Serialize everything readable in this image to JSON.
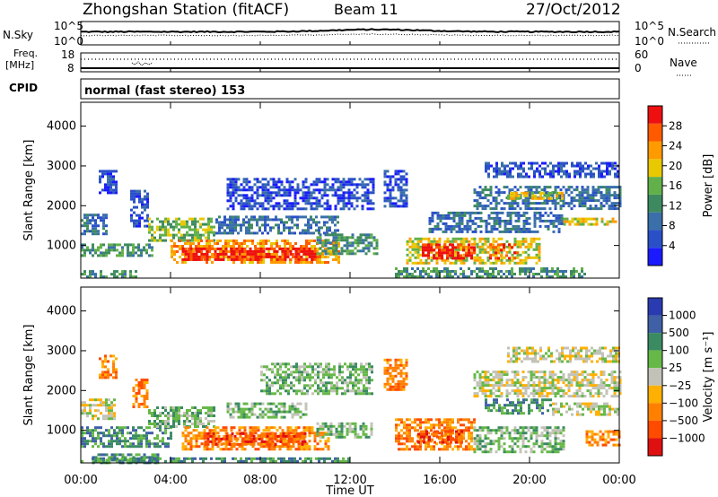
{
  "header": {
    "title": "Zhongshan Station (fitACF)",
    "beam": "Beam 11",
    "date": "27/Oct/2012"
  },
  "side_labels": {
    "nsky": "N.Sky",
    "freq": "Freq.",
    "mhz": "[MHz]",
    "cpid": "CPID",
    "nsearch": "N.Search",
    "nave": "Nave"
  },
  "small_ticks": {
    "noise_top": "10^5",
    "noise_bottom": "10^0",
    "freq_top": "18",
    "freq_bottom": "8",
    "nave_top": "60",
    "nave_bottom": "0"
  },
  "cpid_text": "normal (fast stereo) 153",
  "colors": {
    "power_scale": [
      "#1a1aff",
      "#2a50c8",
      "#3a6faa",
      "#3e8a60",
      "#62b04a",
      "#e8c800",
      "#ff9a00",
      "#ff5a00",
      "#ee1010"
    ],
    "velocity_scale": [
      "#2a3ab0",
      "#3f5fa6",
      "#3a8a62",
      "#66b848",
      "#c2c2b8",
      "#ffb000",
      "#ff8000",
      "#ff4b00",
      "#e01010"
    ]
  },
  "chart_data": [
    {
      "type": "heatmap",
      "quantity": "Power",
      "ylabel": "Slant Range [km]",
      "colorbar_label": "Power [dB]",
      "colorbar_ticks": [
        "4",
        "8",
        "12",
        "16",
        "20",
        "24",
        "28"
      ],
      "colorbar_range": [
        0,
        32
      ],
      "yticks": [
        "1000",
        "2000",
        "3000",
        "4000"
      ],
      "ylim": [
        180,
        4600
      ],
      "xlim_hours": [
        0,
        24
      ],
      "bands": [
        {
          "start": 0.0,
          "end": 1.2,
          "lo": 1300,
          "hi": 1800,
          "level": 2
        },
        {
          "start": 0.0,
          "end": 3.2,
          "lo": 750,
          "hi": 1050,
          "level": 3
        },
        {
          "start": 0.0,
          "end": 2.5,
          "lo": 230,
          "hi": 380,
          "level": 3
        },
        {
          "start": 0.8,
          "end": 1.6,
          "lo": 2300,
          "hi": 2900,
          "level": 1
        },
        {
          "start": 2.2,
          "end": 3.0,
          "lo": 1500,
          "hi": 2400,
          "level": 1
        },
        {
          "start": 3.0,
          "end": 6.0,
          "lo": 1100,
          "hi": 1700,
          "level": 4
        },
        {
          "start": 4.0,
          "end": 11.5,
          "lo": 600,
          "hi": 1150,
          "level": 6
        },
        {
          "start": 4.5,
          "end": 10.5,
          "lo": 650,
          "hi": 950,
          "level": 8
        },
        {
          "start": 6.0,
          "end": 11.5,
          "lo": 1300,
          "hi": 1750,
          "level": 2
        },
        {
          "start": 6.5,
          "end": 13.0,
          "lo": 1950,
          "hi": 2700,
          "level": 1
        },
        {
          "start": 10.5,
          "end": 13.2,
          "lo": 800,
          "hi": 1300,
          "level": 3
        },
        {
          "start": 13.5,
          "end": 14.5,
          "lo": 2000,
          "hi": 2900,
          "level": 1
        },
        {
          "start": 14.5,
          "end": 20.5,
          "lo": 550,
          "hi": 1200,
          "level": 5
        },
        {
          "start": 15.2,
          "end": 17.5,
          "lo": 650,
          "hi": 1050,
          "level": 8
        },
        {
          "start": 18.2,
          "end": 19.5,
          "lo": 650,
          "hi": 1050,
          "level": 7
        },
        {
          "start": 15.5,
          "end": 21.5,
          "lo": 1350,
          "hi": 1850,
          "level": 2
        },
        {
          "start": 17.5,
          "end": 24.0,
          "lo": 1900,
          "hi": 2500,
          "level": 2
        },
        {
          "start": 19.0,
          "end": 21.5,
          "lo": 2150,
          "hi": 2350,
          "level": 5
        },
        {
          "start": 21.5,
          "end": 23.8,
          "lo": 1500,
          "hi": 1700,
          "level": 5
        },
        {
          "start": 18.0,
          "end": 24.0,
          "lo": 2700,
          "hi": 3100,
          "level": 1
        },
        {
          "start": 14.0,
          "end": 22.5,
          "lo": 200,
          "hi": 450,
          "level": 3
        }
      ]
    },
    {
      "type": "heatmap",
      "quantity": "Velocity",
      "ylabel": "Slant Range [km]",
      "xlabel": "Time UT",
      "colorbar_label": "Velocity [m s⁻¹]",
      "colorbar_ticks": [
        "1000",
        "500",
        "100",
        "25",
        "−25",
        "−100",
        "−500",
        "−1000"
      ],
      "yticks": [
        "1000",
        "2000",
        "3000",
        "4000"
      ],
      "xticks": [
        "00:00",
        "04:00",
        "08:00",
        "12:00",
        "16:00",
        "20:00",
        "00:00"
      ],
      "ylim": [
        180,
        4600
      ],
      "xlim_hours": [
        0,
        24
      ],
      "bands": [
        {
          "start": 0.0,
          "end": 1.5,
          "lo": 1300,
          "hi": 1800,
          "level": 4
        },
        {
          "start": 0.0,
          "end": 4.0,
          "lo": 600,
          "hi": 1100,
          "level": 2
        },
        {
          "start": 0.5,
          "end": 3.5,
          "lo": 200,
          "hi": 420,
          "level": 2
        },
        {
          "start": 0.8,
          "end": 1.6,
          "lo": 2300,
          "hi": 2900,
          "level": 6
        },
        {
          "start": 2.3,
          "end": 3.0,
          "lo": 1600,
          "hi": 2300,
          "level": 6
        },
        {
          "start": 3.0,
          "end": 6.0,
          "lo": 1100,
          "hi": 1600,
          "level": 3
        },
        {
          "start": 4.5,
          "end": 11.0,
          "lo": 550,
          "hi": 1100,
          "level": 6
        },
        {
          "start": 5.5,
          "end": 10.0,
          "lo": 650,
          "hi": 950,
          "level": 7
        },
        {
          "start": 6.5,
          "end": 10.0,
          "lo": 1300,
          "hi": 1700,
          "level": 3
        },
        {
          "start": 8.0,
          "end": 13.0,
          "lo": 1900,
          "hi": 2700,
          "level": 3
        },
        {
          "start": 10.5,
          "end": 13.0,
          "lo": 800,
          "hi": 1200,
          "level": 3
        },
        {
          "start": 0.0,
          "end": 12.0,
          "lo": 200,
          "hi": 320,
          "level": 2
        },
        {
          "start": 13.5,
          "end": 14.5,
          "lo": 2000,
          "hi": 2800,
          "level": 6
        },
        {
          "start": 14.0,
          "end": 17.5,
          "lo": 550,
          "hi": 1300,
          "level": 6
        },
        {
          "start": 15.0,
          "end": 17.0,
          "lo": 700,
          "hi": 1000,
          "level": 7
        },
        {
          "start": 17.5,
          "end": 21.5,
          "lo": 450,
          "hi": 1100,
          "level": 3
        },
        {
          "start": 18.0,
          "end": 21.0,
          "lo": 1400,
          "hi": 1800,
          "level": 2
        },
        {
          "start": 17.5,
          "end": 24.0,
          "lo": 1850,
          "hi": 2500,
          "level": 4
        },
        {
          "start": 19.0,
          "end": 24.0,
          "lo": 2700,
          "hi": 3100,
          "level": 4
        },
        {
          "start": 21.0,
          "end": 24.0,
          "lo": 1400,
          "hi": 1700,
          "level": 4
        },
        {
          "start": 22.5,
          "end": 24.0,
          "lo": 600,
          "hi": 1000,
          "level": 6
        }
      ]
    }
  ]
}
